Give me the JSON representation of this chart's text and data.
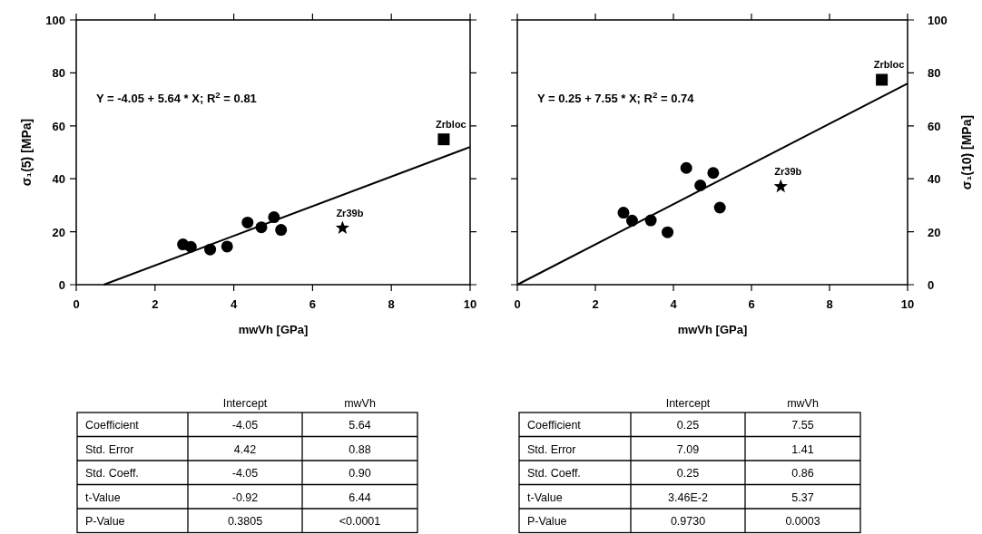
{
  "chart_data": [
    {
      "type": "scatter",
      "xlabel": "mwVh  [GPa]",
      "ylabel": "σ₁(5)  [MPa]",
      "xlim": [
        0,
        10
      ],
      "ylim": [
        0,
        100
      ],
      "xticks": [
        0,
        2,
        4,
        6,
        8,
        10
      ],
      "yticks": [
        0,
        20,
        40,
        60,
        80,
        100
      ],
      "grid": false,
      "annotations": [
        "Y = -4.05 + 5.64 * X;  R$^{2}$ = 0.81",
        {
          "text": "Zr39b",
          "x": 6.76,
          "y": 21.4
        },
        {
          "text": "Zrbloc",
          "x": 9.33,
          "y": 54.9
        }
      ],
      "series": [
        {
          "type": "scatter",
          "marker": "circle",
          "color": "#000000",
          "x": [
            2.71,
            2.91,
            3.4,
            3.83,
            4.35,
            4.7,
            5.02,
            5.2
          ],
          "values": [
            15.2,
            14.3,
            13.3,
            14.4,
            23.5,
            21.7,
            25.5,
            20.7
          ]
        },
        {
          "type": "scatter",
          "marker": "star",
          "color": "#000000",
          "x": [
            6.76
          ],
          "values": [
            21.4
          ]
        },
        {
          "type": "scatter",
          "marker": "square",
          "color": "#000000",
          "x": [
            9.33
          ],
          "values": [
            54.9
          ]
        },
        {
          "type": "line",
          "line_style": "solid",
          "color": "#000000",
          "x": [
            0.7,
            10
          ],
          "values": [
            0,
            52
          ]
        }
      ]
    },
    {
      "type": "scatter",
      "xlabel": "mwVh [GPa]",
      "y2label": "σ₁(10)  [MPa]",
      "xlim": [
        0,
        10
      ],
      "y2lim": [
        0,
        100
      ],
      "xticks": [
        0,
        2,
        4,
        6,
        8,
        10
      ],
      "y2ticks": [
        0,
        20,
        40,
        60,
        80,
        100
      ],
      "grid": false,
      "annotations": [
        "Y = 0.25 + 7.55 * X;  R$^{2}$ = 0.74",
        "Zr39b",
        "Zrbloc"
      ],
      "series": [
        {
          "type": "scatter",
          "axis": "y2",
          "marker": "circle",
          "color": "#000000",
          "x": [
            2.72,
            2.94,
            3.42,
            3.85,
            4.33,
            4.69,
            5.02,
            5.19
          ],
          "values": [
            27.2,
            24.2,
            24.3,
            19.8,
            44.1,
            37.5,
            42.2,
            29.1
          ]
        },
        {
          "type": "scatter",
          "axis": "y2",
          "marker": "star",
          "color": "#000000",
          "x": [
            6.75
          ],
          "values": [
            37.1
          ]
        },
        {
          "type": "scatter",
          "axis": "y2",
          "marker": "square",
          "color": "#000000",
          "x": [
            9.34
          ],
          "values": [
            77.4
          ]
        },
        {
          "type": "line",
          "axis": "y2",
          "line_style": "solid",
          "color": "#000000",
          "x": [
            0,
            10
          ],
          "values": [
            0,
            76
          ]
        }
      ]
    },
    {
      "type": "other",
      "categories": [
        "Intercept",
        "mwVh"
      ],
      "y_categories": [
        "Coefficient",
        "Std. Error",
        "Std. Coeff.",
        "t-Value",
        "P-Value"
      ],
      "cell_labels": [
        [
          "-4.05",
          "5.64"
        ],
        [
          "4.42",
          "0.88"
        ],
        [
          "-4.05",
          "0.90"
        ],
        [
          "-0.92",
          "6.44"
        ],
        [
          "0.3805",
          "<0.0001"
        ]
      ]
    },
    {
      "type": "other",
      "categories": [
        "Intercept",
        "mwVh"
      ],
      "y_categories": [
        "Coefficient",
        "Std. Error",
        "Std. Coeff.",
        "t-Value",
        "P-Value"
      ],
      "cell_labels": [
        [
          "0.25",
          "7.55"
        ],
        [
          "7.09",
          "1.41"
        ],
        [
          "0.25",
          "0.86"
        ],
        [
          "3.46E-2",
          "5.37"
        ],
        [
          "0.9730",
          "0.0003"
        ]
      ]
    }
  ]
}
